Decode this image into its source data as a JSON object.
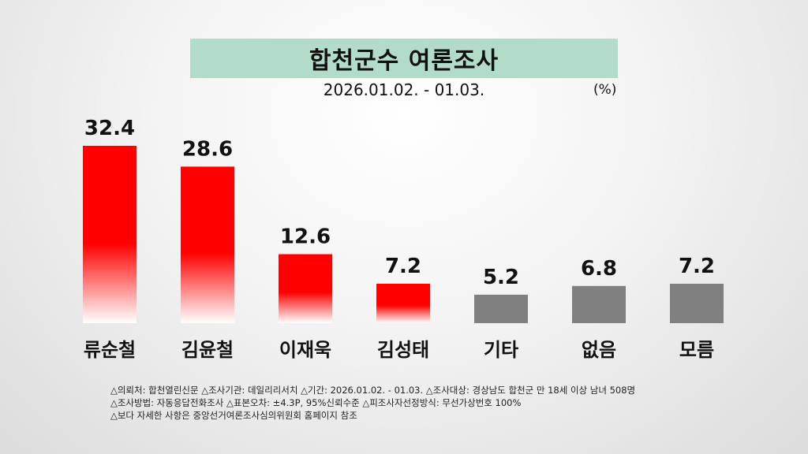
{
  "title": "합천군수 여론조사",
  "date_range": "2026.01.02. - 01.03.",
  "unit": "(%)",
  "chart_data": {
    "type": "bar",
    "categories": [
      "류순철",
      "김윤철",
      "이재욱",
      "김성태",
      "기타",
      "없음",
      "모름"
    ],
    "values": [
      32.4,
      28.6,
      12.6,
      7.2,
      5.2,
      6.8,
      7.2
    ],
    "value_labels": [
      "32.4",
      "28.6",
      "12.6",
      "7.2",
      "5.2",
      "6.8",
      "7.2"
    ],
    "bar_styles": [
      "red-gradient",
      "red-gradient",
      "red-gradient",
      "red-gradient",
      "gray",
      "gray",
      "gray"
    ],
    "colors": {
      "red": "#ff0000",
      "red_fade": "#ffffff",
      "gray": "#808080"
    },
    "ylim": [
      0,
      32.4
    ],
    "grid": false,
    "legend": "none"
  },
  "footnotes": [
    "△의뢰처: 합천열린신문  △조사기관: 데일리리서치 △기간: 2026.01.02. - 01.03. △조사대상: 경상남도 합천군 만 18세 이상 남녀 508명",
    "△조사방법: 자동응답전화조사   △표본오차: ±4.3P, 95%신뢰수준 △피조사자선정방식: 무선가상번호 100%",
    "△보다 자세한 사항은 중앙선거여론조사심의위원회 홈페이지 참조"
  ]
}
